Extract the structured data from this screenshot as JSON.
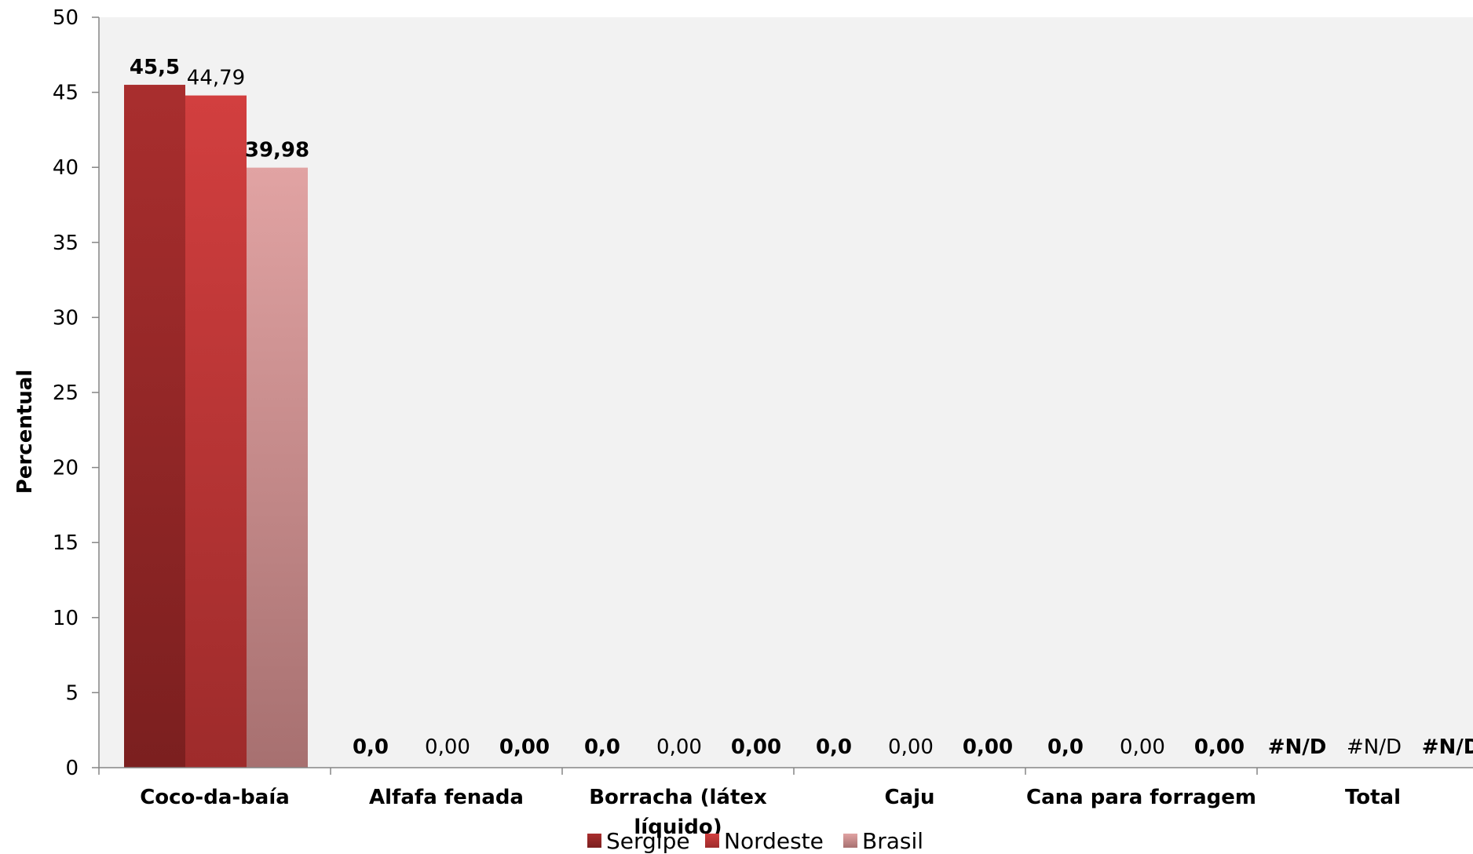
{
  "chart_data": {
    "type": "bar",
    "ylabel": "Percentual",
    "xlabel": "",
    "ylim": [
      0,
      50
    ],
    "yticks": [
      0,
      5,
      10,
      15,
      20,
      25,
      30,
      35,
      40,
      45,
      50
    ],
    "categories": [
      "Coco-da-baía",
      "Alfafa fenada",
      "Borracha (látex líquido)",
      "Caju",
      "Cana para forragem",
      "Total"
    ],
    "series": [
      {
        "name": "Sergipe",
        "values": [
          45.5,
          0,
          0,
          0,
          0,
          null
        ],
        "labels": [
          "45,5",
          "0,0",
          "0,0",
          "0,0",
          "0,0",
          "#N/D"
        ],
        "bold_labels": true,
        "color_top": "#a92e2e",
        "color_bottom": "#7b1f1f"
      },
      {
        "name": "Nordeste",
        "values": [
          44.79,
          0,
          0,
          0,
          0,
          null
        ],
        "labels": [
          "44,79",
          "0,00",
          "0,00",
          "0,00",
          "0,00",
          "#N/D"
        ],
        "bold_labels": false,
        "color_top": "#d23f3f",
        "color_bottom": "#9e2b2b"
      },
      {
        "name": "Brasil",
        "values": [
          39.98,
          0,
          0,
          0,
          0,
          null
        ],
        "labels": [
          "39,98",
          "0,00",
          "0,00",
          "0,00",
          "0,00",
          "#N/D"
        ],
        "bold_labels": true,
        "color_top": "#e1a3a3",
        "color_bottom": "#a77070"
      }
    ],
    "plot_background": "#f2f2f2",
    "grid": false,
    "legend_position": "bottom"
  }
}
